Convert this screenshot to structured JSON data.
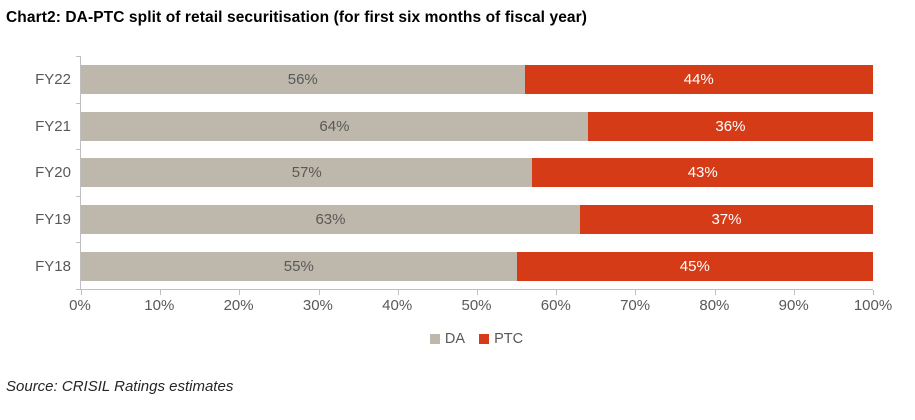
{
  "title": "Chart2: DA-PTC split of retail securitisation (for first six months of fiscal year)",
  "source": "Source: CRISIL Ratings estimates",
  "chart_data": {
    "type": "bar",
    "orientation": "horizontal",
    "stacked": true,
    "title": "Chart2: DA-PTC split of retail securitisation (for first six months of fiscal year)",
    "categories": [
      "FY22",
      "FY21",
      "FY20",
      "FY19",
      "FY18"
    ],
    "series": [
      {
        "name": "DA",
        "color": "#BEB7AB",
        "label_color": "#595959",
        "values": [
          56,
          64,
          57,
          63,
          55
        ]
      },
      {
        "name": "PTC",
        "color": "#D63B17",
        "label_color": "#FFFFFF",
        "values": [
          44,
          36,
          43,
          37,
          45
        ]
      }
    ],
    "value_suffix": "%",
    "xlim": [
      0,
      100
    ],
    "x_ticks": [
      "0%",
      "10%",
      "20%",
      "30%",
      "40%",
      "50%",
      "60%",
      "70%",
      "80%",
      "90%",
      "100%"
    ],
    "grid": false,
    "legend_position": "bottom-center",
    "axis_color": "#BFBFBF",
    "tick_label_color": "#595959"
  }
}
